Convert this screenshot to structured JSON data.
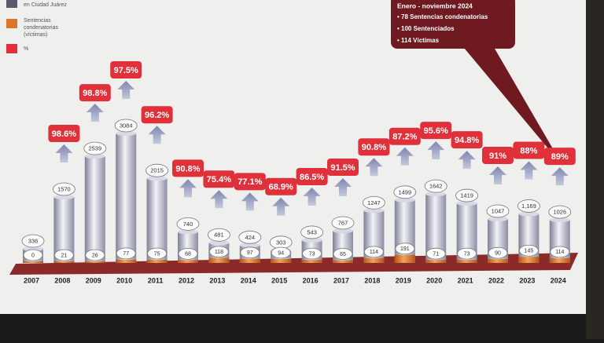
{
  "chart_data": {
    "type": "cylinder-bar",
    "legend": [
      "en Ciudad Juárez",
      "Sentencias condenatorias (víctimas)",
      "%"
    ],
    "callout": {
      "title": "Enero - noviembre 2024",
      "items": [
        "• 78 Sentencias condenatorias",
        "• 100 Sentenciados",
        "• 114 Víctimas"
      ]
    },
    "categories": [
      "2007",
      "2008",
      "2009",
      "2010",
      "2011",
      "2012",
      "2013",
      "2014",
      "2015",
      "2016",
      "2017",
      "2018",
      "2019",
      "2020",
      "2021",
      "2022",
      "2023",
      "2024"
    ],
    "series": [
      {
        "name": "en Ciudad Juárez",
        "color": "#a9abc0",
        "values": [
          336,
          1570,
          2539,
          3084,
          2015,
          740,
          481,
          424,
          303,
          543,
          767,
          1247,
          1499,
          1642,
          1419,
          1047,
          1169,
          1026
        ],
        "value_labels": [
          "336",
          "1570",
          "2539",
          "3084",
          "2015",
          "740",
          "481",
          "424",
          "303",
          "543",
          "767",
          "1247",
          "1499",
          "1642",
          "1419",
          "1047",
          "1,169",
          "1026"
        ]
      },
      {
        "name": "Sentencias condenatorias (víctimas)",
        "color": "#d9762a",
        "values": [
          0,
          21,
          26,
          77,
          75,
          68,
          118,
          97,
          94,
          73,
          65,
          114,
          191,
          71,
          73,
          90,
          145,
          114
        ]
      },
      {
        "name": "%",
        "color": "#e0303a",
        "values": [
          null,
          98.6,
          98.8,
          97.5,
          96.2,
          90.8,
          75.4,
          77.1,
          68.9,
          86.5,
          91.5,
          90.8,
          87.2,
          95.6,
          94.8,
          91,
          88,
          89
        ],
        "value_labels": [
          null,
          "98.6%",
          "98.8%",
          "97.5%",
          "96.2%",
          "90.8%",
          "75.4%",
          "77.1%",
          "68.9%",
          "86.5%",
          "91.5%",
          "90.8%",
          "87.2%",
          "95.6%",
          "94.8%",
          "91%",
          "88%",
          "89%"
        ]
      }
    ]
  }
}
